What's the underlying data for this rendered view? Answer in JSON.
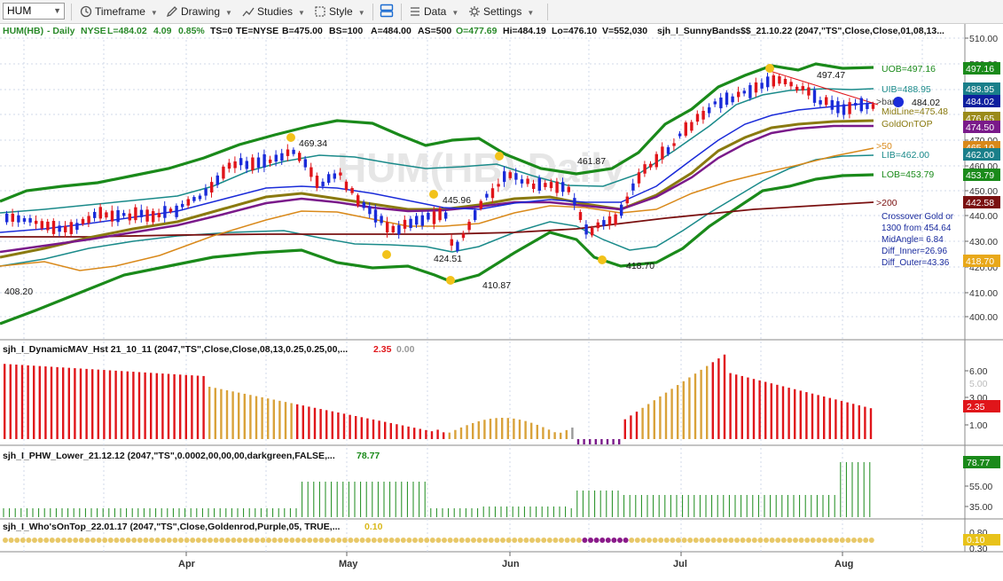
{
  "toolbar": {
    "symbol": "HUM",
    "timeframe": "Timeframe",
    "drawing": "Drawing",
    "studies": "Studies",
    "style": "Style",
    "data": "Data",
    "settings": "Settings"
  },
  "price_pane": {
    "header": {
      "symbol": "HUM(HB)",
      "interval": "- Daily",
      "exchange": "NYSE",
      "last": "L=484.02",
      "change": "4.09",
      "change_pct": "0.85%",
      "ts": "TS=0",
      "te": "TE=NYSE",
      "bid": "B=475.00",
      "bid_size": "BS=100",
      "ask": "A=484.00",
      "ask_size": "AS=500",
      "open": "O=477.69",
      "high": "Hi=484.19",
      "low": "Lo=476.10",
      "volume": "V=552,030",
      "study": "sjh_I_SunnyBands$$_21.10.22 (2047,\"TS\",Close,Close,01,08,13..."
    },
    "watermark": "HUM(HB) Daily",
    "axis_ticks": [
      "510.00",
      "500.00",
      "490.00",
      "480.00",
      "470.00",
      "460.00",
      "450.00",
      "440.00",
      "430.00",
      "420.00",
      "410.00",
      "400.00"
    ],
    "band_labels": {
      "uob": "UOB=497.16",
      "uib": "UIB=488.95",
      "bar": ">bar",
      "midline": "MidLine=475.48",
      "golden": "GoldOnTOP",
      "ma50": ">50",
      "lib": "LIB=462.00",
      "lob": "LOB=453.79",
      "ma200": ">200"
    },
    "crossover_note": [
      "Crossover Gold or",
      "1300 from 454.64",
      "MidAngle= 6.84",
      "Diff_Inner=26.96",
      "Diff_Outer=43.36"
    ],
    "point_labels": [
      "497.47",
      "484.02",
      "469.34",
      "461.87",
      "445.96",
      "424.51",
      "410.87",
      "418.70",
      "408.20"
    ],
    "price_tags": [
      {
        "text": "497.16",
        "color": "#1a8a1a"
      },
      {
        "text": "488.95",
        "color": "#1a7f8a"
      },
      {
        "text": "484.02",
        "color": "#0d1f9e"
      },
      {
        "text": "476.65",
        "color": "#9a8a1a"
      },
      {
        "text": "474.50",
        "color": "#7a1a8a"
      },
      {
        "text": "465.10",
        "color": "#d9891a"
      },
      {
        "text": "462.00",
        "color": "#1a7f8a"
      },
      {
        "text": "453.79",
        "color": "#1a8a1a"
      },
      {
        "text": "442.58",
        "color": "#7a1010"
      },
      {
        "text": "418.70",
        "color": "#e8a81a"
      }
    ]
  },
  "dmav_pane": {
    "header": "sjh_I_DynamicMAV_Hst 21_10_11 (2047,\"TS\",Close,Close,08,13,0.25,0.25,00,...",
    "value1": "2.35",
    "value2": "0.00",
    "axis_ticks": [
      "6.00",
      "5.00",
      "3.00",
      "1.00"
    ],
    "tag": "2.35"
  },
  "phw_pane": {
    "header": "sjh_I_PHW_Lower_21.12.12 (2047,\"TS\",0.0002,00,00,00,darkgreen,FALSE,...",
    "value": "78.77",
    "axis_ticks": [
      "55.00",
      "35.00"
    ],
    "tag": "78.77"
  },
  "wot_pane": {
    "header": "sjh_I_Who'sOnTop_22.01.17 (2047,\"TS\",Close,Goldenrod,Purple,05, TRUE,...",
    "value": "0.10",
    "axis_ticks": [
      "0.80",
      "0.30"
    ],
    "tag": "0.10"
  },
  "time_axis": [
    "Apr",
    "May",
    "Jun",
    "Jul",
    "Aug"
  ],
  "colors": {
    "up_bar": "#1a2bd9",
    "down_bar": "#e0151a",
    "outer_band": "#1a8a1a",
    "inner_band": "#1a8a8a",
    "midline": "#8a7a10",
    "ma50": "#d9891a",
    "ma200": "#7a1010"
  }
}
